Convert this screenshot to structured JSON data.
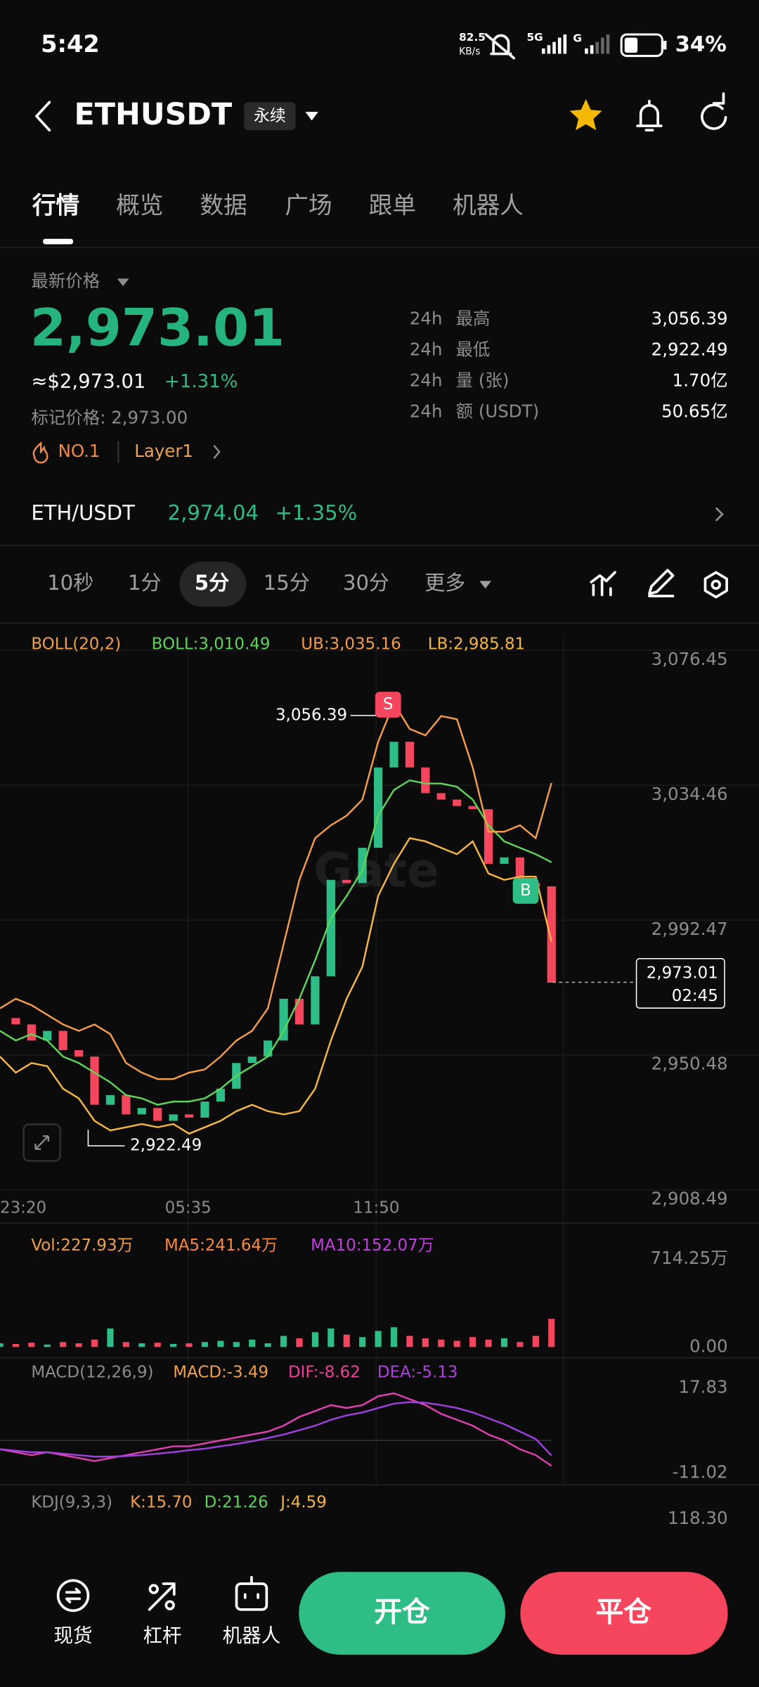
{
  "status_bar": {
    "time": "5:42",
    "net_speed": "82.5",
    "net_unit": "KB/s",
    "signal": "5G",
    "signal2": "G",
    "battery": "34%"
  },
  "header": {
    "symbol": "ETHUSDT",
    "badge": "永续"
  },
  "tabs": {
    "items": [
      "行情",
      "概览",
      "数据",
      "广场",
      "跟单",
      "机器人"
    ],
    "active": 0
  },
  "ticker": {
    "price_label": "最新价格",
    "price": "2,973.01",
    "usd_price": "≈$2,973.01",
    "change": "+1.31%",
    "mark_price": "标记价格: 2,973.00",
    "rank": "NO.1",
    "tag": "Layer1",
    "stats": [
      {
        "period": "24h",
        "name": "最高",
        "value": "3,056.39"
      },
      {
        "period": "24h",
        "name": "最低",
        "value": "2,922.49"
      },
      {
        "period": "24h",
        "name": "量 (张)",
        "value": "1.70亿"
      },
      {
        "period": "24h",
        "name": "额 (USDT)",
        "value": "50.65亿"
      }
    ]
  },
  "spot": {
    "pair": "ETH/USDT",
    "price": "2,974.04",
    "change": "+1.35%"
  },
  "intervals": {
    "items": [
      "10秒",
      "1分",
      "5分",
      "15分",
      "30分",
      "更多"
    ],
    "active": 2
  },
  "price_chart": {
    "type": "candlestick",
    "indicator": "BOLL(20,2)",
    "watermark": "Gate",
    "ylim": [
      2908.49,
      3076.45
    ],
    "yticks": [
      {
        "value": 3076.45,
        "label": "3,076.45"
      },
      {
        "value": 3034.46,
        "label": "3,034.46"
      },
      {
        "value": 2992.47,
        "label": "2,992.47"
      },
      {
        "value": 2950.48,
        "label": "2,950.48"
      },
      {
        "value": 2908.49,
        "label": "2,908.49"
      }
    ],
    "x_labels": [
      "23:20",
      "05:35",
      "11:50"
    ],
    "close": {
      "up_color": "#2ebd85",
      "down_color": "#f6465d",
      "values": [
        2962,
        2960,
        2955,
        2958,
        2952,
        2950,
        2935,
        2938,
        2932,
        2934,
        2930,
        2932,
        2931,
        2936,
        2940,
        2948,
        2950,
        2955,
        2968,
        2960,
        2975,
        3005,
        3004,
        3015,
        3040,
        3048,
        3040,
        3032,
        3030,
        3028,
        3027,
        3010,
        3012,
        3004,
        3003,
        2973.01
      ]
    },
    "bands": [
      {
        "label": "BOLL:3,010.49",
        "color": "#5fd35a",
        "values": [
          2958,
          2955,
          2957,
          2955,
          2950,
          2948,
          2945,
          2942,
          2938,
          2937,
          2935,
          2936,
          2936,
          2937,
          2940,
          2944,
          2947,
          2950,
          2958,
          2968,
          2980,
          2993,
          3000,
          3008,
          3025,
          3033,
          3036,
          3035,
          3035,
          3034,
          3030,
          3022,
          3017,
          3015,
          3013,
          3010.49
        ]
      },
      {
        "label": "UB:3,035.16",
        "color": "#f39c4a",
        "values": [
          2965,
          2968,
          2966,
          2963,
          2960,
          2958,
          2960,
          2957,
          2948,
          2945,
          2943,
          2943,
          2945,
          2946,
          2950,
          2955,
          2958,
          2965,
          2985,
          3005,
          3018,
          3022,
          3025,
          3030,
          3048,
          3060,
          3052,
          3050,
          3056,
          3055,
          3040,
          3020,
          3020,
          3022,
          3018,
          3035.16
        ]
      },
      {
        "label": "LB:2,985.81",
        "color": "#f5b642",
        "values": [
          2950,
          2945,
          2948,
          2947,
          2940,
          2937,
          2930,
          2927,
          2928,
          2929,
          2928,
          2929,
          2926,
          2928,
          2930,
          2933,
          2935,
          2933,
          2932,
          2933,
          2940,
          2955,
          2968,
          2978,
          3000,
          3010,
          3018,
          3017,
          3015,
          3013,
          3017,
          3007,
          3005,
          3006,
          3006,
          2985.81
        ]
      }
    ],
    "high_label": "3,056.39",
    "low_label": "2,922.49",
    "sell_marker": "S",
    "buy_marker": "B",
    "last_price": "2,973.01",
    "countdown": "02:45"
  },
  "volume": {
    "labels": [
      {
        "text": "Vol:227.93万",
        "color": "#f0a04b"
      },
      {
        "text": "MA5:241.64万",
        "color": "#f58a40"
      },
      {
        "text": "MA10:152.07万",
        "color": "#c040e0"
      }
    ],
    "ylim": [
      0,
      714.25
    ],
    "yticks": [
      {
        "value": 714.25,
        "label": "714.25万"
      },
      {
        "value": 0,
        "label": "0.00"
      }
    ],
    "values": [
      30,
      25,
      35,
      20,
      40,
      30,
      60,
      150,
      40,
      30,
      35,
      25,
      30,
      40,
      50,
      40,
      60,
      30,
      90,
      70,
      120,
      150,
      100,
      80,
      130,
      160,
      90,
      70,
      60,
      50,
      80,
      60,
      70,
      40,
      90,
      227.93
    ]
  },
  "macd": {
    "labels": [
      {
        "text": "MACD(12,26,9)",
        "color": "#8c8c8c"
      },
      {
        "text": "MACD:-3.49",
        "color": "#f0a04b"
      },
      {
        "text": "DIF:-8.62",
        "color": "#f0409a"
      },
      {
        "text": "DEA:-5.13",
        "color": "#b040e0"
      }
    ],
    "ylim": [
      -11.02,
      17.83
    ],
    "yticks": [
      17.83,
      -11.02
    ],
    "series": [
      {
        "color": "#e040b0",
        "values": [
          -3,
          -4,
          -5,
          -4,
          -5,
          -6,
          -7,
          -6,
          -5,
          -4,
          -3,
          -2,
          -2,
          -1,
          0,
          1,
          2,
          3,
          5,
          8,
          10,
          12,
          11,
          12,
          15,
          16,
          14,
          12,
          9,
          7,
          5,
          2,
          0,
          -3,
          -5,
          -8.62
        ]
      },
      {
        "color": "#a040e0",
        "values": [
          -3,
          -3.5,
          -4,
          -4,
          -4.5,
          -5,
          -5.5,
          -5.5,
          -5.3,
          -5,
          -4.5,
          -4,
          -3.3,
          -2.8,
          -2,
          -1.2,
          -0.3,
          0.8,
          2,
          3.5,
          5,
          7,
          8.5,
          9.5,
          11,
          12.5,
          13,
          12.8,
          12,
          11,
          9.5,
          7.5,
          5.5,
          3,
          0.5,
          -5.13
        ]
      }
    ]
  },
  "kdj": {
    "labels": [
      {
        "text": "KDJ(9,3,3)",
        "color": "#8c8c8c"
      },
      {
        "text": "K:15.70",
        "color": "#f0a04b"
      },
      {
        "text": "D:21.26",
        "color": "#5fd35a"
      },
      {
        "text": "J:4.59",
        "color": "#f5b642"
      }
    ],
    "scale_label": "118.30"
  },
  "bottom_nav": {
    "items": [
      "现货",
      "杠杆",
      "机器人"
    ],
    "open": "开仓",
    "close": "平仓"
  }
}
